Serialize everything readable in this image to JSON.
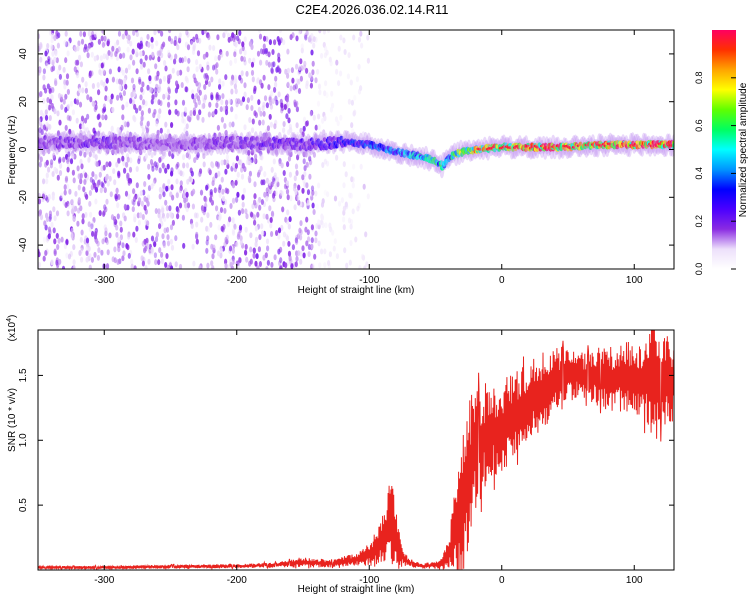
{
  "title": "C2E4.2026.036.02.14.R11",
  "chart_data": [
    {
      "type": "heatmap",
      "name": "spectrogram",
      "xlabel": "Height of straight line (km)",
      "ylabel": "Frequency (Hz)",
      "xlim": [
        -350,
        130
      ],
      "ylim": [
        -50,
        50
      ],
      "xticks": [
        -300,
        -200,
        -100,
        0,
        100
      ],
      "xtick_labels": [
        "-300",
        "-200",
        "-100",
        "0",
        "100"
      ],
      "yticks": [
        -40,
        -20,
        0,
        20,
        40
      ],
      "ytick_labels": [
        "-40",
        "-20",
        "0",
        "20",
        "40"
      ],
      "colorbar": {
        "label": "Normalized spectral amplitude",
        "range": [
          0.0,
          1.0
        ],
        "ticks": [
          0.0,
          0.2,
          0.4,
          0.6,
          0.8
        ],
        "tick_labels": [
          "0.0",
          "0.2",
          "0.4",
          "0.6",
          "0.8"
        ],
        "colors": [
          "#ffffff",
          "#ede0fb",
          "#8a2be2",
          "#4b00ff",
          "#0000ff",
          "#0096ff",
          "#00ffff",
          "#00ff60",
          "#60ff00",
          "#ffff00",
          "#ffa500",
          "#ff3000",
          "#ff0060"
        ]
      },
      "ridge": {
        "x": [
          -350,
          -300,
          -250,
          -200,
          -150,
          -120,
          -100,
          -80,
          -60,
          -50,
          -45,
          -40,
          -30,
          -20,
          0,
          20,
          50,
          80,
          100,
          130
        ],
        "center_hz": [
          3,
          3,
          2,
          3,
          2,
          3,
          2,
          -1,
          -3,
          -5,
          -7,
          -3,
          -1,
          0,
          1,
          1,
          1,
          2,
          2,
          2
        ],
        "amplitude": [
          0.18,
          0.2,
          0.15,
          0.2,
          0.22,
          0.3,
          0.38,
          0.45,
          0.52,
          0.6,
          0.55,
          0.6,
          0.7,
          0.8,
          0.85,
          0.9,
          0.88,
          0.9,
          0.92,
          0.9
        ]
      }
    },
    {
      "type": "line",
      "name": "snr",
      "xlabel": "Height of straight line (km)",
      "ylabel": "SNR (10 * v/v)",
      "scale_note": "(x10",
      "scale_exp": "4",
      "scale_close": ")",
      "xlim": [
        -350,
        130
      ],
      "ylim": [
        0,
        1.85
      ],
      "xticks": [
        -300,
        -200,
        -100,
        0,
        100
      ],
      "xtick_labels": [
        "-300",
        "-200",
        "-100",
        "0",
        "100"
      ],
      "yticks": [
        0.5,
        1.0,
        1.5
      ],
      "ytick_labels": [
        "0.5",
        "1.0",
        "1.5"
      ],
      "color": "#e8231e",
      "series": [
        {
          "name": "SNR",
          "x": [
            -350,
            -300,
            -250,
            -200,
            -170,
            -150,
            -130,
            -110,
            -100,
            -95,
            -90,
            -87,
            -84,
            -80,
            -76,
            -70,
            -60,
            -50,
            -45,
            -40,
            -35,
            -30,
            -25,
            -20,
            -15,
            -10,
            -5,
            0,
            10,
            20,
            30,
            40,
            50,
            60,
            80,
            100,
            110,
            115,
            120,
            130
          ],
          "mean": [
            0.02,
            0.02,
            0.025,
            0.03,
            0.04,
            0.06,
            0.05,
            0.08,
            0.12,
            0.16,
            0.22,
            0.3,
            0.36,
            0.28,
            0.12,
            0.05,
            0.03,
            0.04,
            0.06,
            0.12,
            0.3,
            0.5,
            0.75,
            0.9,
            1.0,
            1.05,
            1.08,
            1.1,
            1.2,
            1.3,
            1.38,
            1.45,
            1.5,
            1.5,
            1.48,
            1.47,
            1.46,
            1.55,
            1.47,
            1.45
          ],
          "spread": [
            0.01,
            0.012,
            0.015,
            0.015,
            0.02,
            0.04,
            0.03,
            0.05,
            0.1,
            0.14,
            0.2,
            0.3,
            0.5,
            0.3,
            0.1,
            0.03,
            0.02,
            0.03,
            0.06,
            0.12,
            0.35,
            0.6,
            0.6,
            0.5,
            0.45,
            0.4,
            0.38,
            0.35,
            0.35,
            0.3,
            0.3,
            0.3,
            0.2,
            0.18,
            0.25,
            0.3,
            0.35,
            0.6,
            0.4,
            0.3
          ]
        }
      ]
    }
  ]
}
